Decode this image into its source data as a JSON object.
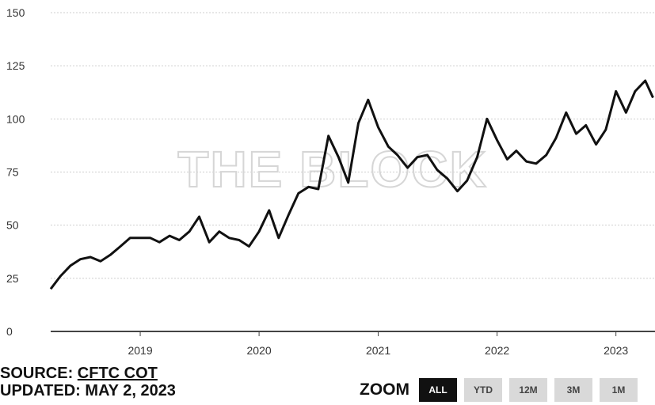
{
  "chart_data": {
    "type": "line",
    "title": "",
    "xlabel": "",
    "ylabel": "",
    "ylim": [
      0,
      150
    ],
    "yticks": [
      "0",
      "25",
      "50",
      "75",
      "100",
      "125",
      "150"
    ],
    "xticks": [
      "2019",
      "2020",
      "2021",
      "2022",
      "2023"
    ],
    "grid": "horizontal dotted",
    "watermark": "THE BLOCK",
    "series": [
      {
        "color": "#111111",
        "points": [
          [
            "2018-04-01",
            20
          ],
          [
            "2018-05-01",
            26
          ],
          [
            "2018-06-01",
            31
          ],
          [
            "2018-07-01",
            34
          ],
          [
            "2018-08-01",
            35
          ],
          [
            "2018-09-01",
            33
          ],
          [
            "2018-10-01",
            36
          ],
          [
            "2018-11-01",
            40
          ],
          [
            "2018-12-01",
            44
          ],
          [
            "2019-01-01",
            44
          ],
          [
            "2019-02-01",
            44
          ],
          [
            "2019-03-01",
            42
          ],
          [
            "2019-04-01",
            45
          ],
          [
            "2019-05-01",
            43
          ],
          [
            "2019-06-01",
            47
          ],
          [
            "2019-07-01",
            54
          ],
          [
            "2019-08-01",
            42
          ],
          [
            "2019-09-01",
            47
          ],
          [
            "2019-10-01",
            44
          ],
          [
            "2019-11-01",
            43
          ],
          [
            "2019-12-01",
            40
          ],
          [
            "2020-01-01",
            47
          ],
          [
            "2020-02-01",
            57
          ],
          [
            "2020-03-01",
            44
          ],
          [
            "2020-04-01",
            55
          ],
          [
            "2020-05-01",
            65
          ],
          [
            "2020-06-01",
            68
          ],
          [
            "2020-07-01",
            67
          ],
          [
            "2020-08-01",
            92
          ],
          [
            "2020-09-01",
            82
          ],
          [
            "2020-10-01",
            70
          ],
          [
            "2020-11-01",
            98
          ],
          [
            "2020-12-01",
            109
          ],
          [
            "2021-01-01",
            96
          ],
          [
            "2021-02-01",
            87
          ],
          [
            "2021-03-01",
            83
          ],
          [
            "2021-04-01",
            77
          ],
          [
            "2021-05-01",
            82
          ],
          [
            "2021-06-01",
            83
          ],
          [
            "2021-07-01",
            76
          ],
          [
            "2021-08-01",
            72
          ],
          [
            "2021-09-01",
            66
          ],
          [
            "2021-10-01",
            71
          ],
          [
            "2021-11-01",
            82
          ],
          [
            "2021-12-01",
            100
          ],
          [
            "2022-01-01",
            90
          ],
          [
            "2022-02-01",
            81
          ],
          [
            "2022-03-01",
            85
          ],
          [
            "2022-04-01",
            80
          ],
          [
            "2022-05-01",
            79
          ],
          [
            "2022-06-01",
            83
          ],
          [
            "2022-07-01",
            91
          ],
          [
            "2022-08-01",
            103
          ],
          [
            "2022-09-01",
            93
          ],
          [
            "2022-10-01",
            97
          ],
          [
            "2022-11-01",
            88
          ],
          [
            "2022-12-01",
            95
          ],
          [
            "2023-01-01",
            113
          ],
          [
            "2023-02-01",
            103
          ],
          [
            "2023-03-01",
            113
          ],
          [
            "2023-04-01",
            118
          ],
          [
            "2023-04-25",
            110
          ]
        ]
      }
    ]
  },
  "footer": {
    "source_label": "SOURCE: ",
    "source_link": "CFTC COT",
    "updated": "UPDATED: MAY 2, 2023"
  },
  "zoom": {
    "label": "ZOOM",
    "buttons": [
      "ALL",
      "YTD",
      "12M",
      "3M",
      "1M"
    ],
    "active": "ALL"
  },
  "colors": {
    "line": "#111111",
    "button_active": "#111111",
    "button": "#d9d9d9"
  }
}
